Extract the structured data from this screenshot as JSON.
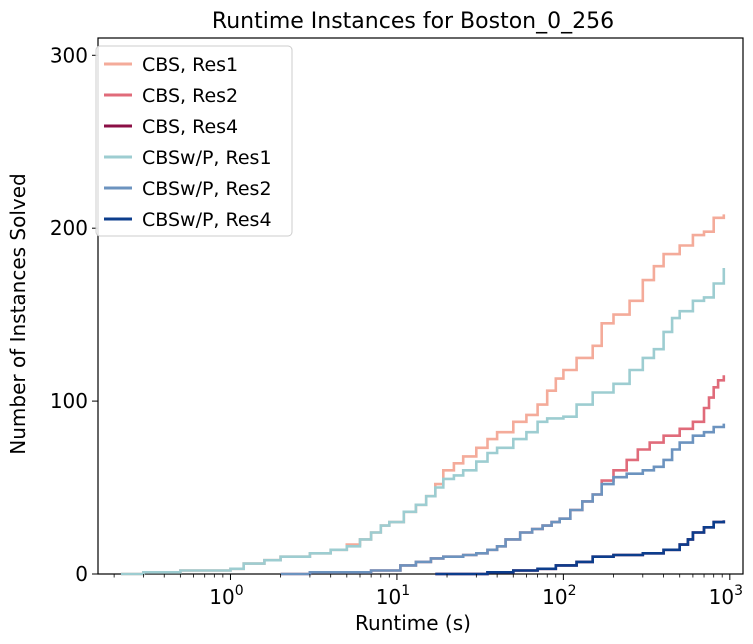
{
  "chart_data": {
    "type": "line",
    "title": "Runtime Instances for Boston_0_256",
    "xlabel": "Runtime (s)",
    "ylabel": "Number of Instances Solved",
    "xscale": "log",
    "xlim": [
      0.16,
      1200
    ],
    "ylim": [
      0,
      310
    ],
    "xticks": [
      {
        "value": 1,
        "base": "10",
        "exp": "0"
      },
      {
        "value": 10,
        "base": "10",
        "exp": "1"
      },
      {
        "value": 100,
        "base": "10",
        "exp": "2"
      },
      {
        "value": 1000,
        "base": "10",
        "exp": "3"
      }
    ],
    "yticks": [
      {
        "value": 0,
        "label": "0"
      },
      {
        "value": 100,
        "label": "100"
      },
      {
        "value": 200,
        "label": "200"
      },
      {
        "value": 300,
        "label": "300"
      }
    ],
    "grid": false,
    "legend_position": "top-left",
    "series": [
      {
        "name": "CBS, Res1",
        "color": "#f4ab9a",
        "points": [
          [
            0.22,
            0
          ],
          [
            0.3,
            1
          ],
          [
            0.5,
            2
          ],
          [
            1.0,
            3
          ],
          [
            1.2,
            6
          ],
          [
            1.6,
            8
          ],
          [
            2.0,
            10
          ],
          [
            3.0,
            12
          ],
          [
            4.0,
            14
          ],
          [
            5.0,
            17
          ],
          [
            6.0,
            20
          ],
          [
            7.0,
            24
          ],
          [
            8.0,
            28
          ],
          [
            9.0,
            30
          ],
          [
            10.0,
            30
          ],
          [
            11.0,
            36
          ],
          [
            13.0,
            40
          ],
          [
            15.0,
            45
          ],
          [
            17.0,
            52
          ],
          [
            19.0,
            60
          ],
          [
            22.0,
            64
          ],
          [
            25.0,
            68
          ],
          [
            30.0,
            73
          ],
          [
            35.0,
            78
          ],
          [
            40.0,
            82
          ],
          [
            50.0,
            88
          ],
          [
            60.0,
            92
          ],
          [
            70.0,
            98
          ],
          [
            80.0,
            106
          ],
          [
            90.0,
            113
          ],
          [
            100.0,
            118
          ],
          [
            120.0,
            125
          ],
          [
            150.0,
            132
          ],
          [
            170.0,
            145
          ],
          [
            200.0,
            150
          ],
          [
            250.0,
            158
          ],
          [
            300.0,
            170
          ],
          [
            350.0,
            178
          ],
          [
            400.0,
            185
          ],
          [
            500.0,
            190
          ],
          [
            600.0,
            196
          ],
          [
            700.0,
            198
          ],
          [
            800.0,
            206
          ],
          [
            920.0,
            208
          ]
        ]
      },
      {
        "name": "CBS, Res2",
        "color": "#e06b7a",
        "points": [
          [
            2.0,
            0
          ],
          [
            3.0,
            1
          ],
          [
            5.0,
            1
          ],
          [
            7.0,
            2
          ],
          [
            9.0,
            2
          ],
          [
            10.5,
            5
          ],
          [
            13.0,
            7
          ],
          [
            16.0,
            9
          ],
          [
            19.0,
            10
          ],
          [
            25.0,
            11
          ],
          [
            30.0,
            12
          ],
          [
            35.0,
            14
          ],
          [
            40.0,
            16
          ],
          [
            45.0,
            20
          ],
          [
            55.0,
            24
          ],
          [
            65.0,
            26
          ],
          [
            75.0,
            28
          ],
          [
            85.0,
            30
          ],
          [
            95.0,
            32
          ],
          [
            110.0,
            37
          ],
          [
            130.0,
            42
          ],
          [
            150.0,
            46
          ],
          [
            170.0,
            54
          ],
          [
            200.0,
            60
          ],
          [
            240.0,
            66
          ],
          [
            280.0,
            72
          ],
          [
            330.0,
            76
          ],
          [
            400.0,
            80
          ],
          [
            500.0,
            84
          ],
          [
            600.0,
            88
          ],
          [
            700.0,
            96
          ],
          [
            750.0,
            102
          ],
          [
            800.0,
            108
          ],
          [
            850.0,
            112
          ],
          [
            920.0,
            115
          ]
        ]
      },
      {
        "name": "CBS, Res4",
        "color": "#8b0f45",
        "points": [
          [
            17.0,
            0
          ],
          [
            35.0,
            1
          ],
          [
            50.0,
            2
          ],
          [
            70.0,
            3
          ],
          [
            90.0,
            5
          ],
          [
            120.0,
            7
          ],
          [
            150.0,
            10
          ],
          [
            200.0,
            11
          ],
          [
            300.0,
            12
          ],
          [
            400.0,
            14
          ],
          [
            500.0,
            17
          ],
          [
            560.0,
            20
          ],
          [
            600.0,
            24
          ],
          [
            700.0,
            27
          ],
          [
            800.0,
            30
          ],
          [
            920.0,
            31
          ]
        ]
      },
      {
        "name": "CBSw/P, Res1",
        "color": "#9dcdd1",
        "points": [
          [
            0.22,
            0
          ],
          [
            0.3,
            1
          ],
          [
            0.5,
            2
          ],
          [
            1.0,
            3
          ],
          [
            1.2,
            6
          ],
          [
            1.6,
            8
          ],
          [
            2.0,
            10
          ],
          [
            3.0,
            12
          ],
          [
            4.0,
            14
          ],
          [
            5.0,
            16
          ],
          [
            6.0,
            20
          ],
          [
            7.0,
            24
          ],
          [
            8.0,
            28
          ],
          [
            9.0,
            30
          ],
          [
            10.0,
            30
          ],
          [
            11.0,
            36
          ],
          [
            13.0,
            40
          ],
          [
            15.0,
            45
          ],
          [
            17.0,
            50
          ],
          [
            19.0,
            55
          ],
          [
            22.0,
            57
          ],
          [
            25.0,
            60
          ],
          [
            30.0,
            65
          ],
          [
            35.0,
            70
          ],
          [
            40.0,
            73
          ],
          [
            50.0,
            78
          ],
          [
            60.0,
            82
          ],
          [
            70.0,
            88
          ],
          [
            80.0,
            90
          ],
          [
            100.0,
            91
          ],
          [
            120.0,
            98
          ],
          [
            150.0,
            105
          ],
          [
            200.0,
            110
          ],
          [
            250.0,
            118
          ],
          [
            300.0,
            125
          ],
          [
            350.0,
            130
          ],
          [
            400.0,
            140
          ],
          [
            450.0,
            148
          ],
          [
            500.0,
            152
          ],
          [
            600.0,
            158
          ],
          [
            700.0,
            160
          ],
          [
            800.0,
            168
          ],
          [
            920.0,
            177
          ]
        ]
      },
      {
        "name": "CBSw/P, Res2",
        "color": "#6c93bf",
        "points": [
          [
            2.0,
            0
          ],
          [
            3.0,
            1
          ],
          [
            5.0,
            1
          ],
          [
            7.0,
            2
          ],
          [
            9.0,
            2
          ],
          [
            10.5,
            5
          ],
          [
            13.0,
            7
          ],
          [
            16.0,
            9
          ],
          [
            19.0,
            10
          ],
          [
            25.0,
            11
          ],
          [
            30.0,
            12
          ],
          [
            35.0,
            14
          ],
          [
            40.0,
            16
          ],
          [
            45.0,
            20
          ],
          [
            55.0,
            24
          ],
          [
            65.0,
            26
          ],
          [
            75.0,
            28
          ],
          [
            85.0,
            30
          ],
          [
            95.0,
            32
          ],
          [
            110.0,
            37
          ],
          [
            130.0,
            42
          ],
          [
            150.0,
            46
          ],
          [
            170.0,
            52
          ],
          [
            200.0,
            56
          ],
          [
            240.0,
            58
          ],
          [
            300.0,
            60
          ],
          [
            350.0,
            62
          ],
          [
            400.0,
            66
          ],
          [
            450.0,
            72
          ],
          [
            500.0,
            76
          ],
          [
            600.0,
            80
          ],
          [
            700.0,
            82
          ],
          [
            800.0,
            85
          ],
          [
            920.0,
            87
          ]
        ]
      },
      {
        "name": "CBSw/P, Res4",
        "color": "#0c3d8c",
        "points": [
          [
            17.0,
            0
          ],
          [
            35.0,
            1
          ],
          [
            50.0,
            2
          ],
          [
            70.0,
            3
          ],
          [
            90.0,
            5
          ],
          [
            120.0,
            7
          ],
          [
            150.0,
            10
          ],
          [
            200.0,
            11
          ],
          [
            300.0,
            12
          ],
          [
            400.0,
            14
          ],
          [
            500.0,
            17
          ],
          [
            560.0,
            20
          ],
          [
            600.0,
            24
          ],
          [
            700.0,
            27
          ],
          [
            800.0,
            30
          ],
          [
            920.0,
            31
          ]
        ]
      }
    ]
  }
}
